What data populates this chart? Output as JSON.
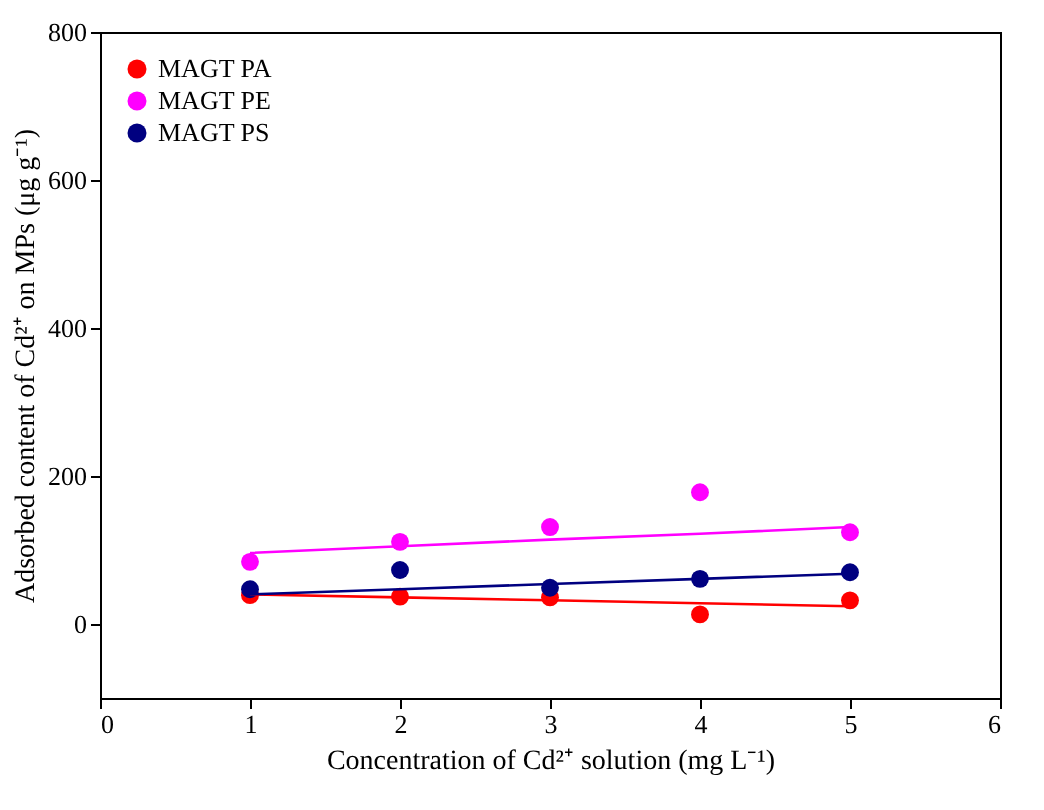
{
  "chart_data": {
    "type": "scatter",
    "xlabel": "Concentration of Cd²⁺ solution (mg L⁻¹)",
    "ylabel": "Adsorbed content of Cd²⁺ on MPs (μg g⁻¹)",
    "x": [
      1,
      2,
      3,
      4,
      5
    ],
    "series": [
      {
        "name": "MAGT PA",
        "color": "#ff0000",
        "values": [
          39,
          37,
          36,
          13,
          32
        ]
      },
      {
        "name": "MAGT PE",
        "color": "#ff00ff",
        "values": [
          84,
          111,
          131,
          178,
          124
        ]
      },
      {
        "name": "MAGT PS",
        "color": "#000080",
        "values": [
          47,
          73,
          49,
          61,
          70
        ]
      },
      {
        "type": "line",
        "marker": "none",
        "color": "#ff0000",
        "values": [
          40,
          36,
          32,
          28,
          24
        ]
      },
      {
        "type": "line",
        "marker": "none",
        "color": "#ff00ff",
        "values": [
          96,
          105,
          114,
          122,
          131
        ]
      },
      {
        "type": "line",
        "marker": "none",
        "color": "#000080",
        "values": [
          40,
          47,
          54,
          61,
          68
        ]
      }
    ],
    "xlim": [
      0,
      6
    ],
    "xticks": [
      0,
      1,
      2,
      3,
      4,
      5,
      6
    ],
    "ylim": [
      -100,
      800
    ],
    "yticks": [
      0,
      200,
      400,
      600,
      800
    ],
    "grid": false,
    "legend": "top left",
    "marker": "circle"
  }
}
